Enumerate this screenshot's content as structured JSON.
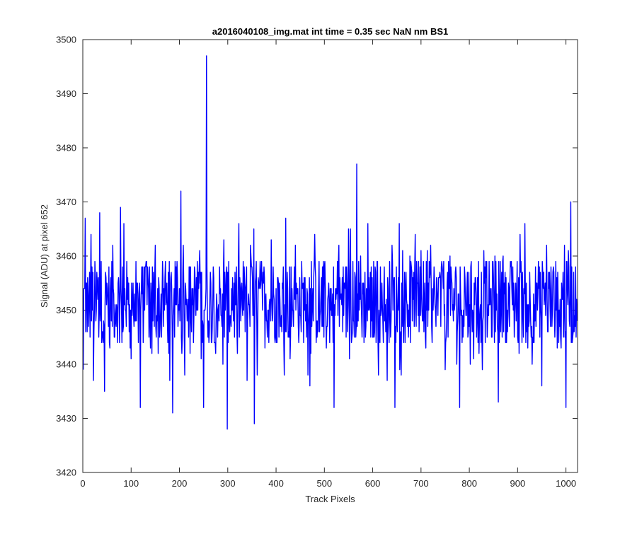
{
  "chart_data": {
    "type": "line",
    "title": "a2016040108_img.mat int time = 0.35 sec  NaN nm BS1",
    "xlabel": "Track Pixels",
    "ylabel": "Signal (ADU) at pixel 652",
    "xlim": [
      0,
      1024
    ],
    "ylim": [
      3420,
      3500
    ],
    "xticks": [
      "0",
      "100",
      "200",
      "300",
      "400",
      "500",
      "600",
      "700",
      "800",
      "900",
      "1000"
    ],
    "yticks": [
      "3420",
      "3430",
      "3440",
      "3450",
      "3460",
      "3470",
      "3480",
      "3490",
      "3500"
    ],
    "grid": false,
    "line_color": "#0000ff",
    "series": [
      {
        "x": [
          1,
          5,
          9,
          13,
          17,
          22,
          27,
          30,
          35,
          40,
          45,
          50,
          56,
          62,
          70,
          78,
          81,
          85,
          90,
          95,
          100,
          110,
          119,
          130,
          140,
          150,
          160,
          170,
          180,
          186,
          192,
          203,
          210,
          220,
          230,
          240,
          250,
          256,
          262,
          270,
          280,
          290,
          299,
          310,
          320,
          330,
          340,
          350,
          355,
          362,
          370,
          380,
          390,
          400,
          410,
          420,
          430,
          440,
          450,
          460,
          470,
          480,
          490,
          500,
          510,
          520,
          530,
          540,
          550,
          560,
          567,
          575,
          580,
          590,
          600,
          610,
          620,
          630,
          640,
          646,
          655,
          665,
          680,
          690,
          700,
          710,
          720,
          730,
          740,
          750,
          760,
          770,
          780,
          790,
          800,
          810,
          820,
          830,
          840,
          850,
          860,
          870,
          880,
          890,
          900,
          910,
          920,
          930,
          940,
          950,
          960,
          970,
          980,
          990,
          997,
          1000,
          1005,
          1010,
          1015,
          1020,
          1023
        ],
        "y": [
          3439,
          3467,
          3446,
          3452,
          3464,
          3437,
          3448,
          3455,
          3468,
          3446,
          3435,
          3455,
          3443,
          3462,
          3451,
          3469,
          3444,
          3466,
          3447,
          3455,
          3441,
          3459,
          3432,
          3458,
          3443,
          3462,
          3447,
          3456,
          3437,
          3431,
          3451,
          3472,
          3445,
          3458,
          3449,
          3454,
          3432,
          3497,
          3446,
          3458,
          3450,
          3440,
          3428,
          3456,
          3442,
          3451,
          3437,
          3458,
          3429,
          3446,
          3459,
          3448,
          3463,
          3454,
          3447,
          3467,
          3445,
          3462,
          3449,
          3456,
          3436,
          3464,
          3446,
          3458,
          3451,
          3432,
          3462,
          3449,
          3465,
          3448,
          3477,
          3460,
          3453,
          3466,
          3445,
          3459,
          3451,
          3437,
          3462,
          3432,
          3466,
          3451,
          3458,
          3447,
          3461,
          3443,
          3462,
          3450,
          3456,
          3439,
          3460,
          3451,
          3432,
          3458,
          3447,
          3455,
          3442,
          3461,
          3449,
          3456,
          3433,
          3460,
          3449,
          3458,
          3445,
          3457,
          3451,
          3440,
          3455,
          3436,
          3462,
          3453,
          3450,
          3443,
          3462,
          3432,
          3461,
          3470,
          3446,
          3458,
          3448
        ]
      }
    ]
  }
}
